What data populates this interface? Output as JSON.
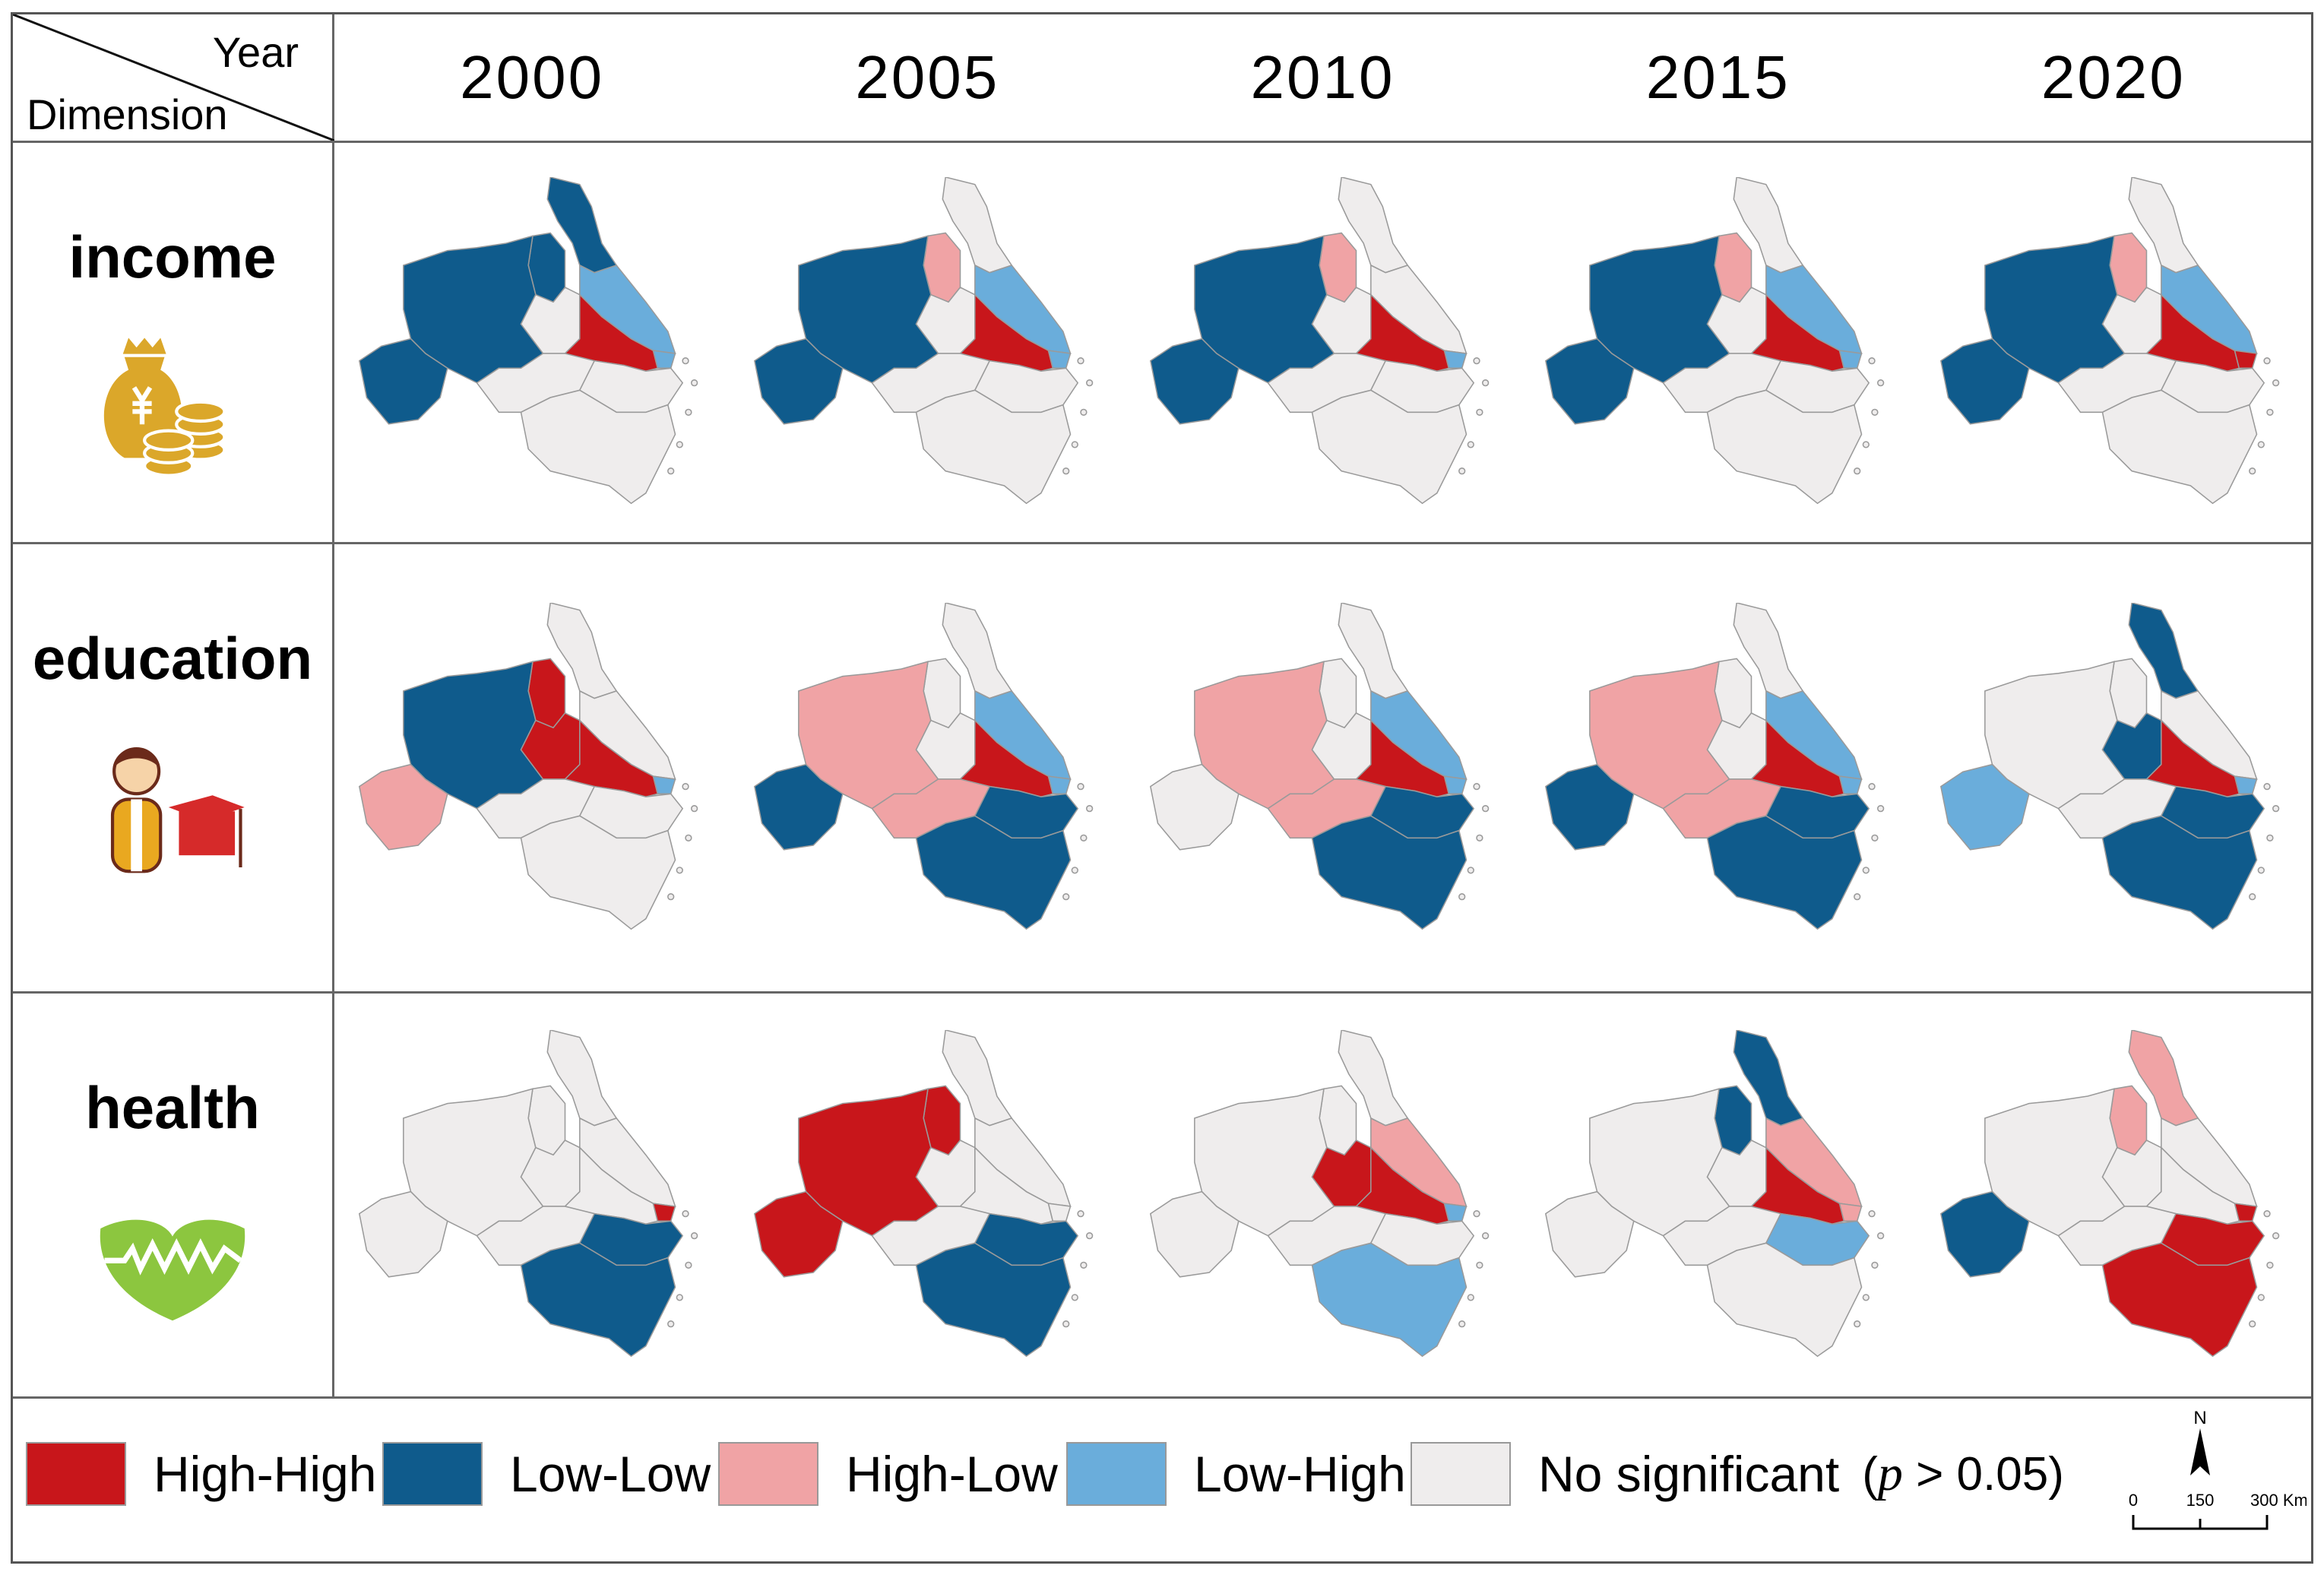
{
  "header": {
    "corner_top": "Year",
    "corner_bottom": "Dimension",
    "years": [
      "2000",
      "2005",
      "2010",
      "2015",
      "2020"
    ]
  },
  "colors": {
    "HH": "#c8161b",
    "LL": "#0f5b8c",
    "HL": "#f0a3a5",
    "LH": "#6aaddb",
    "NS": "#efeded",
    "border": "#9a9a9a"
  },
  "rows": [
    {
      "label": "income",
      "icon": "money-bag-icon",
      "icon_color": "#dba72a",
      "maps": [
        {
          "jiangsu-north": "LL",
          "anhui-north": "LL",
          "anhui-west": "LL",
          "anhui-central": "LL",
          "anhui-east": "NS",
          "jiangsu-central": "LH",
          "jiangsu-south": "HH",
          "shanghai": "LH",
          "anhui-south": "NS",
          "zhejiang-north": "NS",
          "zhejiang-south": "NS"
        },
        {
          "jiangsu-north": "NS",
          "anhui-north": "HL",
          "anhui-west": "LL",
          "anhui-central": "LL",
          "anhui-east": "NS",
          "jiangsu-central": "LH",
          "jiangsu-south": "HH",
          "shanghai": "LH",
          "anhui-south": "NS",
          "zhejiang-north": "NS",
          "zhejiang-south": "NS"
        },
        {
          "jiangsu-north": "NS",
          "anhui-north": "HL",
          "anhui-west": "LL",
          "anhui-central": "LL",
          "anhui-east": "NS",
          "jiangsu-central": "NS",
          "jiangsu-south": "HH",
          "shanghai": "LH",
          "anhui-south": "NS",
          "zhejiang-north": "NS",
          "zhejiang-south": "NS"
        },
        {
          "jiangsu-north": "NS",
          "anhui-north": "HL",
          "anhui-west": "LL",
          "anhui-central": "LL",
          "anhui-east": "NS",
          "jiangsu-central": "LH",
          "jiangsu-south": "HH",
          "shanghai": "LH",
          "anhui-south": "NS",
          "zhejiang-north": "NS",
          "zhejiang-south": "NS"
        },
        {
          "jiangsu-north": "NS",
          "anhui-north": "HL",
          "anhui-west": "LL",
          "anhui-central": "LL",
          "anhui-east": "NS",
          "jiangsu-central": "LH",
          "jiangsu-south": "HH",
          "shanghai": "HH",
          "anhui-south": "NS",
          "zhejiang-north": "NS",
          "zhejiang-south": "NS"
        }
      ]
    },
    {
      "label": "education",
      "icon": "student-graduation-icon",
      "icon_color": "#d62a2a",
      "maps": [
        {
          "jiangsu-north": "NS",
          "anhui-north": "HH",
          "anhui-west": "HL",
          "anhui-central": "LL",
          "anhui-east": "HH",
          "jiangsu-central": "NS",
          "jiangsu-south": "HH",
          "shanghai": "LH",
          "anhui-south": "NS",
          "zhejiang-north": "NS",
          "zhejiang-south": "NS"
        },
        {
          "jiangsu-north": "NS",
          "anhui-north": "NS",
          "anhui-west": "LL",
          "anhui-central": "HL",
          "anhui-east": "NS",
          "jiangsu-central": "LH",
          "jiangsu-south": "HH",
          "shanghai": "LH",
          "anhui-south": "HL",
          "zhejiang-north": "LL",
          "zhejiang-south": "LL"
        },
        {
          "jiangsu-north": "NS",
          "anhui-north": "NS",
          "anhui-west": "NS",
          "anhui-central": "HL",
          "anhui-east": "NS",
          "jiangsu-central": "LH",
          "jiangsu-south": "HH",
          "shanghai": "LH",
          "anhui-south": "HL",
          "zhejiang-north": "LL",
          "zhejiang-south": "LL"
        },
        {
          "jiangsu-north": "NS",
          "anhui-north": "NS",
          "anhui-west": "LL",
          "anhui-central": "HL",
          "anhui-east": "NS",
          "jiangsu-central": "LH",
          "jiangsu-south": "HH",
          "shanghai": "LH",
          "anhui-south": "HL",
          "zhejiang-north": "LL",
          "zhejiang-south": "LL"
        },
        {
          "jiangsu-north": "LL",
          "anhui-north": "NS",
          "anhui-west": "LH",
          "anhui-central": "NS",
          "anhui-east": "LL",
          "jiangsu-central": "NS",
          "jiangsu-south": "HH",
          "shanghai": "LH",
          "anhui-south": "NS",
          "zhejiang-north": "LL",
          "zhejiang-south": "LL"
        }
      ]
    },
    {
      "label": "health",
      "icon": "heart-pulse-icon",
      "icon_color": "#8cc63f",
      "maps": [
        {
          "jiangsu-north": "NS",
          "anhui-north": "NS",
          "anhui-west": "NS",
          "anhui-central": "NS",
          "anhui-east": "NS",
          "jiangsu-central": "NS",
          "jiangsu-south": "NS",
          "shanghai": "HH",
          "anhui-south": "NS",
          "zhejiang-north": "LL",
          "zhejiang-south": "LL"
        },
        {
          "jiangsu-north": "NS",
          "anhui-north": "HH",
          "anhui-west": "HH",
          "anhui-central": "HH",
          "anhui-east": "NS",
          "jiangsu-central": "NS",
          "jiangsu-south": "NS",
          "shanghai": "NS",
          "anhui-south": "NS",
          "zhejiang-north": "LL",
          "zhejiang-south": "LL"
        },
        {
          "jiangsu-north": "NS",
          "anhui-north": "NS",
          "anhui-west": "NS",
          "anhui-central": "NS",
          "anhui-east": "HH",
          "jiangsu-central": "HL",
          "jiangsu-south": "HH",
          "shanghai": "LH",
          "anhui-south": "NS",
          "zhejiang-north": "NS",
          "zhejiang-south": "LH"
        },
        {
          "jiangsu-north": "LL",
          "anhui-north": "LL",
          "anhui-west": "NS",
          "anhui-central": "NS",
          "anhui-east": "NS",
          "jiangsu-central": "HL",
          "jiangsu-south": "HH",
          "shanghai": "HL",
          "anhui-south": "NS",
          "zhejiang-north": "LH",
          "zhejiang-south": "NS"
        },
        {
          "jiangsu-north": "HL",
          "anhui-north": "HL",
          "anhui-west": "LL",
          "anhui-central": "NS",
          "anhui-east": "NS",
          "jiangsu-central": "NS",
          "jiangsu-south": "NS",
          "shanghai": "HH",
          "anhui-south": "NS",
          "zhejiang-north": "HH",
          "zhejiang-south": "HH"
        }
      ]
    }
  ],
  "legend": {
    "items": [
      {
        "key": "HH",
        "label": "High-High"
      },
      {
        "key": "LL",
        "label": "Low-Low"
      },
      {
        "key": "HL",
        "label": "High-Low"
      },
      {
        "key": "LH",
        "label": "Low-High"
      },
      {
        "key": "NS",
        "label": "No significant"
      }
    ],
    "p_symbol": "p",
    "p_rest": " > 0.05"
  },
  "north_arrow": "N",
  "scale_bar": {
    "labels": [
      "0",
      "150",
      "300 Km"
    ]
  }
}
